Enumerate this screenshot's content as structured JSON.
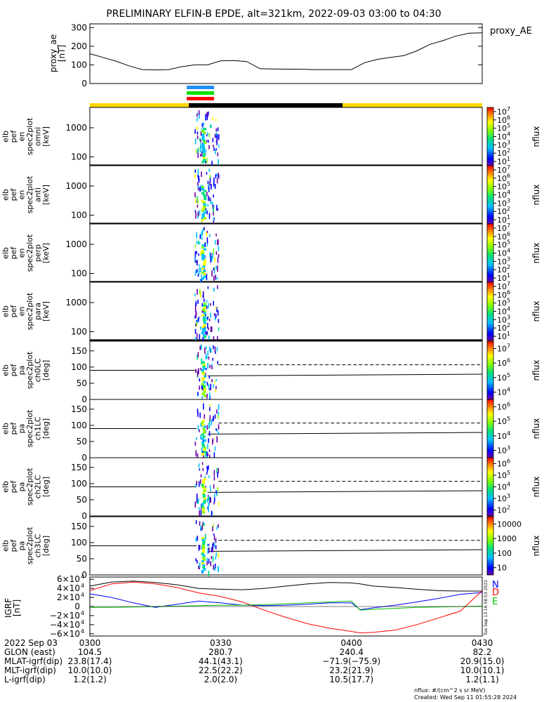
{
  "title": "PRELIMINARY ELFIN-B EPDE, alt=321km, 2022-09-03 03:00 to 04:30",
  "colors": {
    "spectro_bg": "#ffffff",
    "bar_yellow": "#ffd700",
    "bar_black": "#000000",
    "blue": "#1e90ff",
    "green": "#00e000",
    "red": "#ff0000",
    "grf_n": "#0000ff",
    "grf_d": "#ff0000",
    "grf_e": "#00c000"
  },
  "status_bars": {
    "science_zones": [
      "blue",
      "green",
      "red"
    ],
    "science_zone_minutes": [
      24.5,
      29.5
    ],
    "track_segments": [
      {
        "from_min": 0,
        "to_min": 24.5,
        "color": "yellow"
      },
      {
        "from_min": 24.5,
        "to_min": 61.5,
        "color": "black"
      },
      {
        "from_min": 61.5,
        "to_min": 90,
        "color": "yellow"
      }
    ]
  },
  "panels": {
    "proxy_ae": {
      "ylabel": [
        "proxy_ae",
        "[nT]"
      ],
      "legend": "proxy_AE",
      "ticks": [
        "0",
        "100",
        "200",
        "300"
      ]
    },
    "energy": [
      {
        "ylabel": [
          "elb",
          "pef",
          "en",
          "spec2plot",
          "omni",
          "[keV]"
        ],
        "ticks": [
          "100",
          "1000"
        ],
        "cbar_ticks": [
          "10",
          "10",
          "10",
          "10",
          "10",
          "10",
          "10"
        ],
        "cbar_exp": [
          "1",
          "2",
          "3",
          "4",
          "5",
          "6",
          "7"
        ],
        "cbar_label": "nflux"
      },
      {
        "ylabel": [
          "elb",
          "pef",
          "en",
          "spec2plot",
          "anti",
          "[keV]"
        ],
        "ticks": [
          "100",
          "1000"
        ],
        "cbar_ticks": [
          "10",
          "10",
          "10",
          "10",
          "10",
          "10",
          "10"
        ],
        "cbar_exp": [
          "1",
          "2",
          "3",
          "4",
          "5",
          "6",
          "7"
        ],
        "cbar_label": "nflux"
      },
      {
        "ylabel": [
          "elb",
          "pef",
          "en",
          "spec2plot",
          "perp",
          "[keV]"
        ],
        "ticks": [
          "100",
          "1000"
        ],
        "cbar_ticks": [
          "10",
          "10",
          "10",
          "10",
          "10",
          "10",
          "10"
        ],
        "cbar_exp": [
          "1",
          "2",
          "3",
          "4",
          "5",
          "6",
          "7"
        ],
        "cbar_label": "nflux"
      },
      {
        "ylabel": [
          "elb",
          "pef",
          "en",
          "spec2plot",
          "para",
          "[keV]"
        ],
        "ticks": [
          "100",
          "1000"
        ],
        "cbar_ticks": [
          "10",
          "10",
          "10",
          "10",
          "10",
          "10",
          "10"
        ],
        "cbar_exp": [
          "1",
          "2",
          "3",
          "4",
          "5",
          "6",
          "7"
        ],
        "cbar_label": "nflux"
      }
    ],
    "pitch": [
      {
        "ylabel": [
          "elb",
          "pef",
          "pa",
          "spec2plot",
          "ch0LC",
          "[deg]"
        ],
        "ticks": [
          "0",
          "50",
          "100",
          "150"
        ],
        "cbar_ticks": [
          "10",
          "10",
          "10",
          "10"
        ],
        "cbar_exp": [
          "4",
          "5",
          "6",
          "7"
        ],
        "cbar_label": "nflux"
      },
      {
        "ylabel": [
          "elb",
          "pef",
          "pa",
          "spec2plot",
          "ch1LC",
          "[deg]"
        ],
        "ticks": [
          "0",
          "50",
          "100",
          "150"
        ],
        "cbar_ticks": [
          "10",
          "10",
          "10",
          "10"
        ],
        "cbar_exp": [
          "3",
          "4",
          "5",
          "6"
        ],
        "cbar_label": "nflux"
      },
      {
        "ylabel": [
          "elb",
          "pef",
          "pa",
          "spec2plot",
          "ch2LC",
          "[deg]"
        ],
        "ticks": [
          "0",
          "50",
          "100",
          "150"
        ],
        "cbar_ticks": [
          "10",
          "10",
          "10",
          "10",
          "10"
        ],
        "cbar_exp": [
          "2",
          "3",
          "4",
          "5",
          "6"
        ],
        "cbar_label": "nflux"
      },
      {
        "ylabel": [
          "elb",
          "pef",
          "pa",
          "spec2plot",
          "ch3LC",
          "[deg]"
        ],
        "ticks": [
          "0",
          "50",
          "100",
          "150"
        ],
        "cbar_ticks": [
          "10",
          "100",
          "1000",
          "10000"
        ],
        "cbar_exp": [
          "",
          "",
          "",
          ""
        ],
        "cbar_label": "nflux"
      }
    ],
    "igrf": {
      "ylabel": [
        "IGRF",
        "[nT]"
      ],
      "ticks": [
        "−6×10",
        "−4×10",
        "−2×10",
        "0",
        "2×10",
        "4×10",
        "6×10"
      ],
      "tick_exp": "4",
      "legend": [
        "N",
        "D",
        "E"
      ],
      "stamp": "Tue Sep 13 16:58:53 2022"
    }
  },
  "footer": {
    "rows": [
      {
        "label": "2022 Sep 03",
        "values": [
          "0300",
          "0330",
          "0400",
          "0430"
        ]
      },
      {
        "label": "GLON (east)",
        "values": [
          "104.5",
          "280.7",
          "240.4",
          "82.2"
        ]
      },
      {
        "label": "MLAT-igrf(dip)",
        "values": [
          "23.8(17.4)",
          "44.1(43.1)",
          "−71.9(−75.9)",
          "20.9(15.0)"
        ]
      },
      {
        "label": "MLT-igrf(dip)",
        "values": [
          "10.0(10.0)",
          "22.5(22.2)",
          "23.2(21.9)",
          "10.0(10.1)"
        ]
      },
      {
        "label": "L-igrf(dip)",
        "values": [
          "1.2(1.2)",
          "2.0(2.0)",
          "10.5(17.7)",
          "1.2(1.1)"
        ]
      }
    ],
    "units_note": "nflux: #/(cm^2 s sr MeV)",
    "created": "Created: Wed Sep 11 01:55:28 2024"
  },
  "chart_data": [
    {
      "type": "line",
      "title": "PRELIMINARY ELFIN-B EPDE, alt=321km, 2022-09-03 03:00 to 04:30",
      "xlabel": "",
      "ylabel": "proxy_ae [nT]",
      "ylim": [
        0,
        320
      ],
      "x_minutes": [
        0,
        3,
        6,
        9,
        12,
        15,
        18,
        21,
        24,
        27,
        30,
        33,
        36,
        39,
        42,
        45,
        48,
        51,
        54,
        57,
        60,
        63,
        66,
        69,
        72,
        75,
        78,
        81,
        84,
        87,
        90
      ],
      "series": [
        {
          "name": "proxy_AE",
          "values": [
            160,
            140,
            120,
            95,
            75,
            73,
            74,
            90,
            100,
            100,
            122,
            123,
            118,
            80,
            78,
            77,
            77,
            75,
            75,
            75,
            75,
            112,
            130,
            140,
            150,
            175,
            210,
            230,
            255,
            270,
            272
          ]
        }
      ]
    },
    {
      "type": "line",
      "title": "",
      "ylabel": "IGRF [nT]",
      "ylim": [
        -65000,
        65000
      ],
      "x_minutes": [
        0,
        5,
        10,
        15,
        20,
        25,
        30,
        35,
        40,
        45,
        50,
        55,
        60,
        62,
        65,
        70,
        75,
        80,
        85,
        90
      ],
      "series": [
        {
          "name": "N",
          "values": [
            28000,
            20000,
            8000,
            -2000,
            5000,
            12000,
            8000,
            3000,
            2000,
            3000,
            5000,
            8000,
            8000,
            -7000,
            -3000,
            3000,
            10000,
            18000,
            27000,
            31000
          ]
        },
        {
          "name": "D",
          "values": [
            35000,
            50000,
            54000,
            50000,
            42000,
            30000,
            22000,
            10000,
            -8000,
            -24000,
            -38000,
            -48000,
            -55000,
            -58000,
            -57000,
            -52000,
            -40000,
            -25000,
            -10000,
            35000
          ]
        },
        {
          "name": "E",
          "values": [
            -2000,
            -2000,
            -1000,
            0,
            1000,
            2000,
            3000,
            3000,
            4000,
            6000,
            8000,
            10000,
            12000,
            -8000,
            -6000,
            -4000,
            -2000,
            -1000,
            0,
            1000
          ]
        },
        {
          "name": "",
          "values": [
            45000,
            54000,
            56000,
            53000,
            48000,
            40000,
            38000,
            37000,
            40000,
            45000,
            50000,
            53000,
            52000,
            50000,
            45000,
            42000,
            38000,
            35000,
            34000,
            34000
          ]
        }
      ]
    }
  ]
}
